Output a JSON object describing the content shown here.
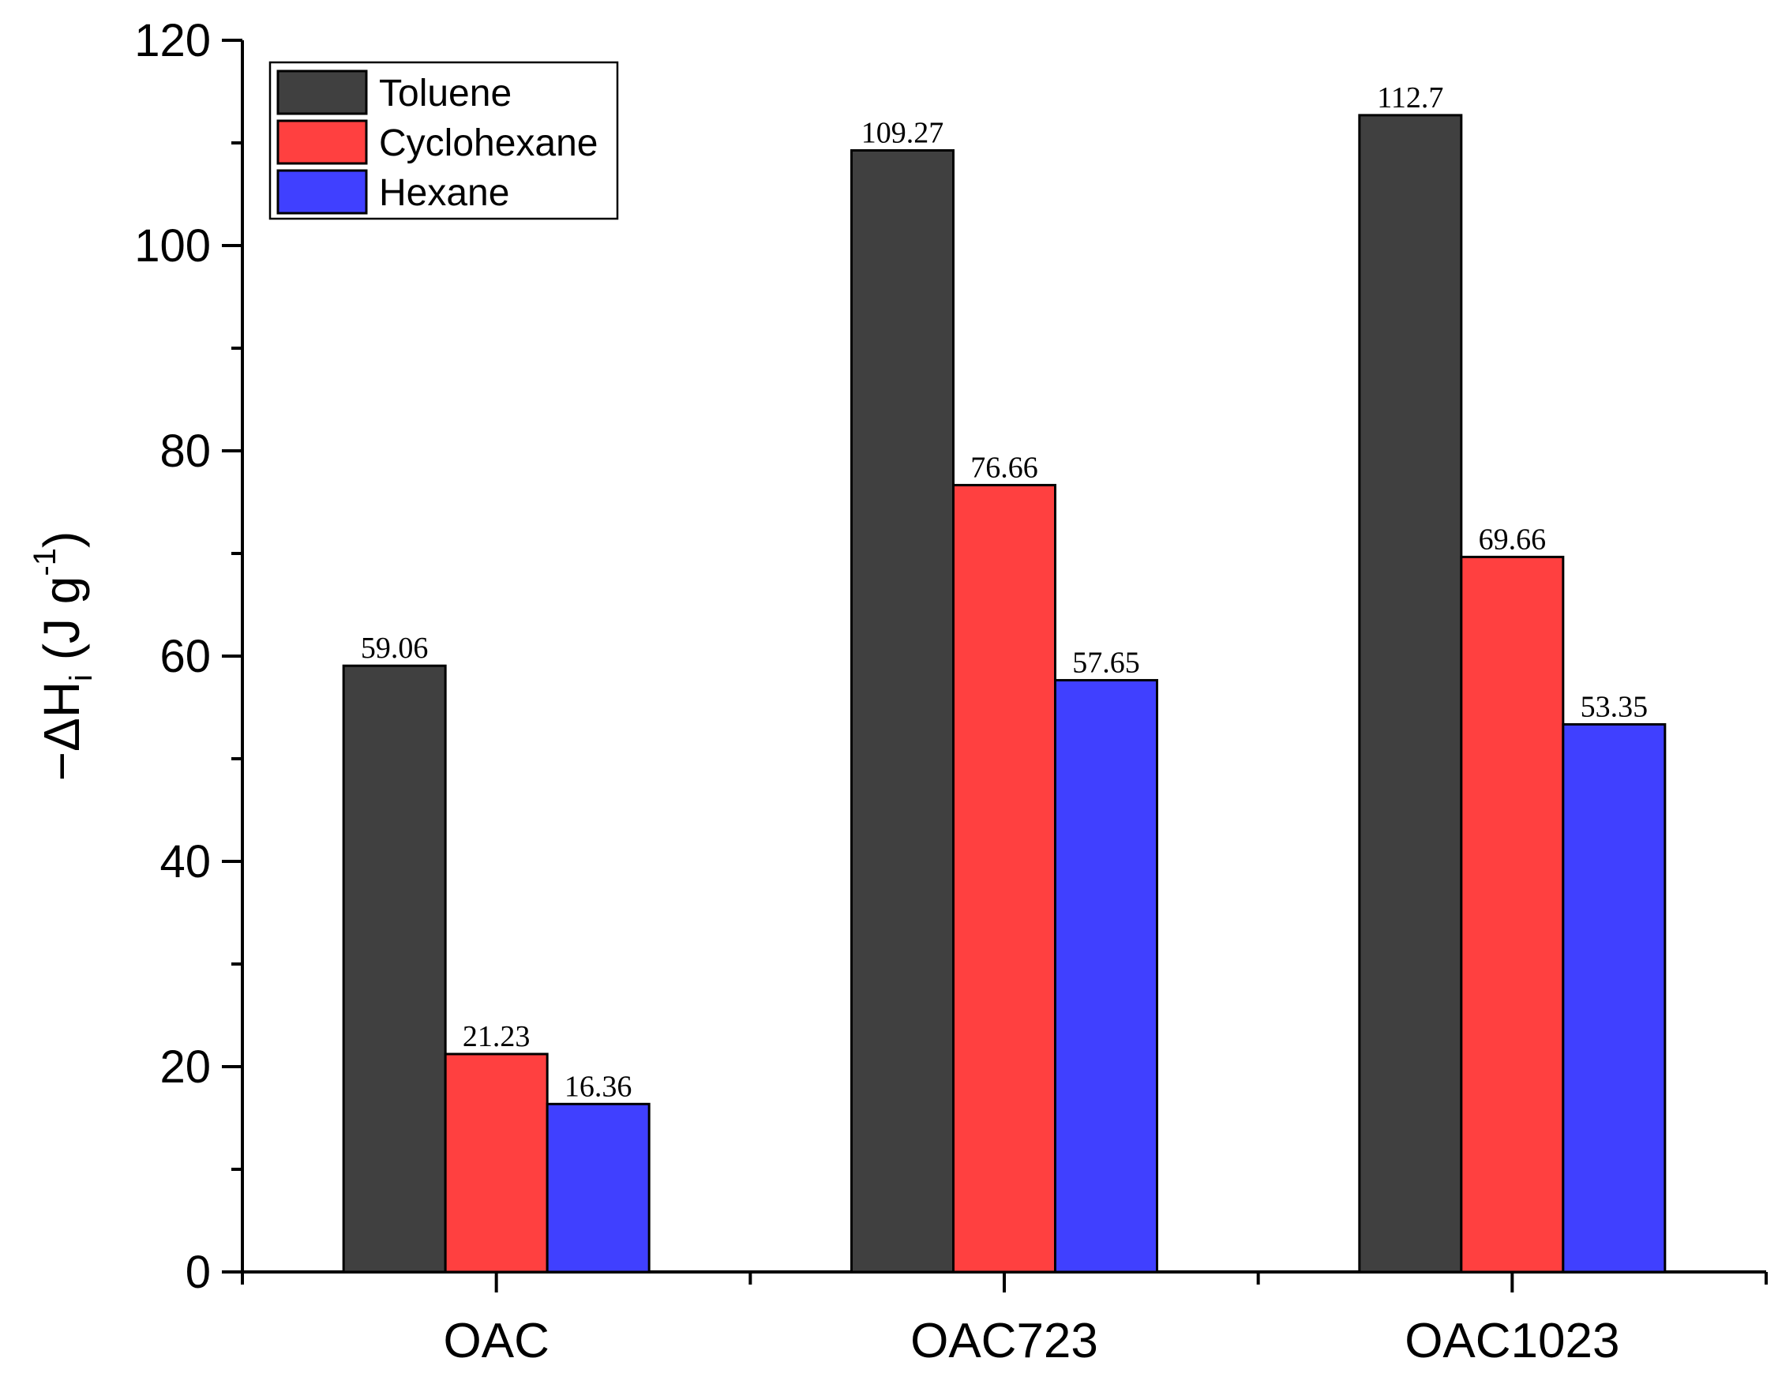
{
  "chart_data": {
    "type": "bar",
    "title": "",
    "xlabel": "",
    "ylabel": {
      "prefix": "−ΔH",
      "sub": "i",
      "mid": " (J g",
      "sup": "-1",
      "suffix": ")"
    },
    "categories": [
      "OAC",
      "OAC723",
      "OAC1023"
    ],
    "ylim": [
      0,
      120
    ],
    "yticks": [
      0,
      20,
      40,
      60,
      80,
      100,
      120
    ],
    "grid": false,
    "legend_position": "top-left",
    "series": [
      {
        "name": "Toluene",
        "color": "#404040",
        "values": [
          59.06,
          109.27,
          112.7
        ],
        "labels": [
          "59.06",
          "109.27",
          "112.7"
        ]
      },
      {
        "name": "Cyclohexane",
        "color": "#ff4040",
        "values": [
          21.23,
          76.66,
          69.66
        ],
        "labels": [
          "21.23",
          "76.66",
          "69.66"
        ]
      },
      {
        "name": "Hexane",
        "color": "#4040ff",
        "values": [
          16.36,
          57.65,
          53.35
        ],
        "labels": [
          "16.36",
          "57.65",
          "53.35"
        ]
      }
    ]
  }
}
